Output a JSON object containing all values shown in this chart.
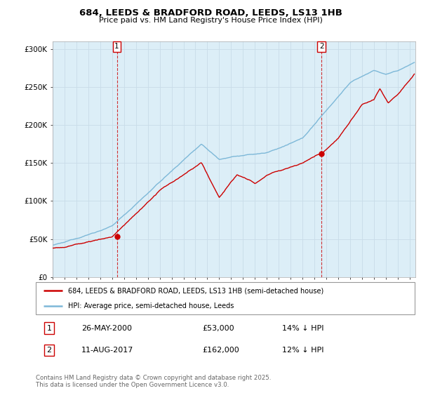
{
  "title": "684, LEEDS & BRADFORD ROAD, LEEDS, LS13 1HB",
  "subtitle": "Price paid vs. HM Land Registry's House Price Index (HPI)",
  "ylabel_ticks": [
    "£0",
    "£50K",
    "£100K",
    "£150K",
    "£200K",
    "£250K",
    "£300K"
  ],
  "ytick_values": [
    0,
    50000,
    100000,
    150000,
    200000,
    250000,
    300000
  ],
  "ylim": [
    0,
    310000
  ],
  "xlim_start": 1995.0,
  "xlim_end": 2025.5,
  "hpi_color": "#7db8d8",
  "price_color": "#cc0000",
  "bg_color": "#dceef7",
  "marker1_date": 2000.4,
  "marker1_price": 53000,
  "marker2_date": 2017.6,
  "marker2_price": 162000,
  "annotation1": "26-MAY-2000",
  "annotation1_price": "£53,000",
  "annotation1_hpi": "14% ↓ HPI",
  "annotation2": "11-AUG-2017",
  "annotation2_price": "£162,000",
  "annotation2_hpi": "12% ↓ HPI",
  "legend_line1": "684, LEEDS & BRADFORD ROAD, LEEDS, LS13 1HB (semi-detached house)",
  "legend_line2": "HPI: Average price, semi-detached house, Leeds",
  "footer": "Contains HM Land Registry data © Crown copyright and database right 2025.\nThis data is licensed under the Open Government Licence v3.0.",
  "background_color": "#ffffff",
  "grid_color": "#c8dce8"
}
